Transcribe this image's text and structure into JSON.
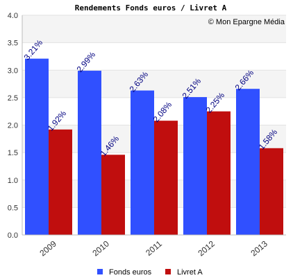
{
  "chart_data": {
    "type": "bar",
    "title": "Rendements Fonds euros / Livret A",
    "credit": "© Mon Epargne Média",
    "categories": [
      "2009",
      "2010",
      "2011",
      "2012",
      "2013"
    ],
    "series": [
      {
        "name": "Fonds euros",
        "color": "#3050ff",
        "values": [
          3.21,
          2.99,
          2.63,
          2.51,
          2.66
        ],
        "labels": [
          "3.21%",
          "2.99%",
          "2.63%",
          "2.51%",
          "2.66%"
        ]
      },
      {
        "name": "Livret A",
        "color": "#c00e0e",
        "values": [
          1.92,
          1.46,
          2.08,
          2.25,
          1.58
        ],
        "labels": [
          "1.92%",
          "1.46%",
          "2.08%",
          "2.25%",
          "1.58%"
        ]
      }
    ],
    "ylim": [
      0,
      4.0
    ],
    "yticks": [
      "0.0",
      "0.5",
      "1.0",
      "1.5",
      "2.0",
      "2.5",
      "3.0",
      "3.5",
      "4.0"
    ],
    "grid": true,
    "legend_position": "bottom",
    "xlabel": "",
    "ylabel": ""
  }
}
